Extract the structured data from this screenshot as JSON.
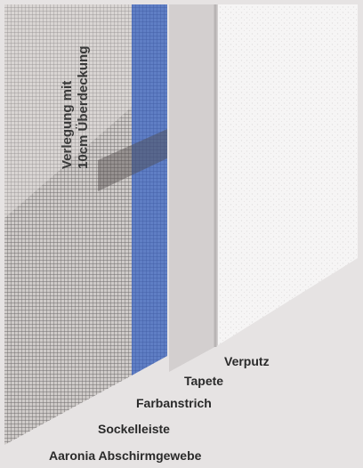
{
  "annotation": {
    "lines": [
      "Verlegung mit",
      "10cm Überdeckung"
    ]
  },
  "layers": [
    {
      "label": "Verputz"
    },
    {
      "label": "Tapete"
    },
    {
      "label": "Farbanstrich"
    },
    {
      "label": "Sockelleiste"
    },
    {
      "label": "Aaronia Abschirmgewebe"
    }
  ]
}
